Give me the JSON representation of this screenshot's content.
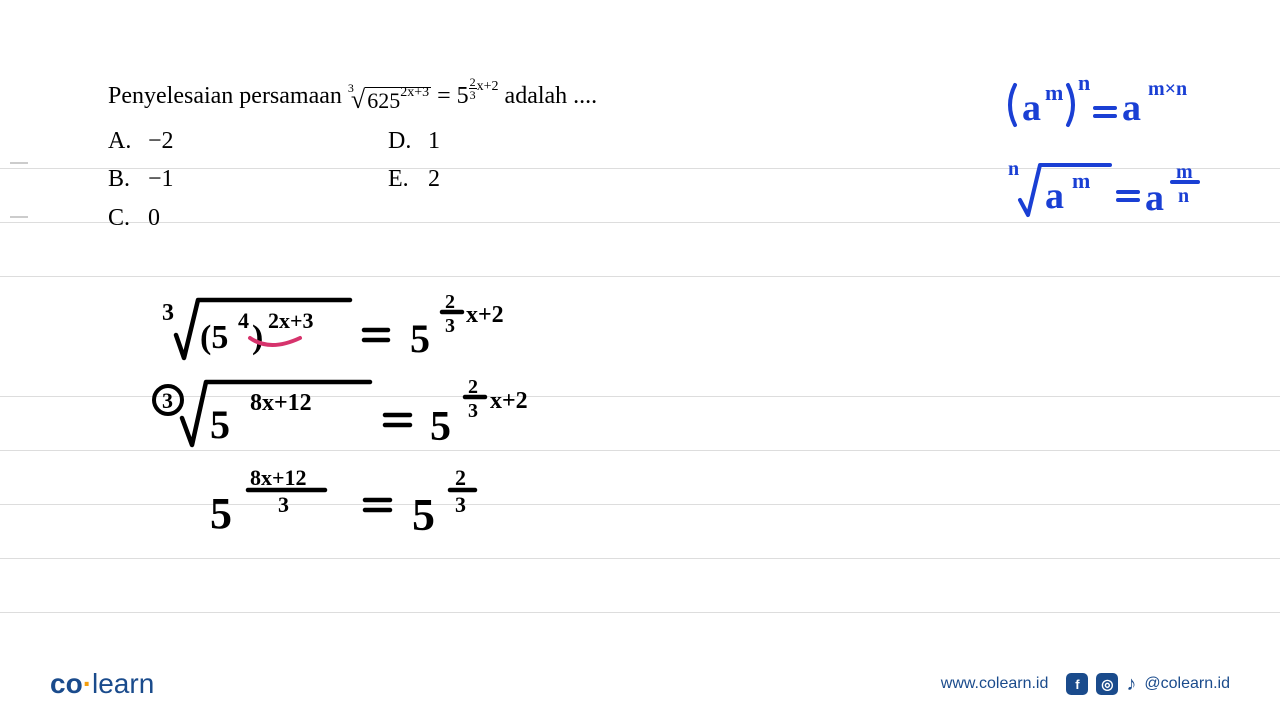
{
  "question": {
    "prefix": "Penyelesaian persamaan",
    "suffix": "adalah ....",
    "lhs": {
      "index": "3",
      "base": "625",
      "exp": "2x+3"
    },
    "rhs": {
      "base": "5",
      "frac_num": "2",
      "frac_den": "3",
      "exp_tail": "x+2"
    }
  },
  "options": {
    "A": "−2",
    "B": "−1",
    "C": "0",
    "D": "1",
    "E": "2"
  },
  "handwriting": {
    "rule1": "(aᵐ)ⁿ=aᵐˣⁿ",
    "rule2": "ⁿ√aᵐ=aᵐ/ⁿ",
    "work_line1_lhs_idx": "3",
    "work_line1_lhs_base": "(5⁴)",
    "work_line1_lhs_exp": "2x+3",
    "work_line1_rhs": "5",
    "work_line1_rhs_exp_frac_n": "2",
    "work_line1_rhs_exp_frac_d": "3",
    "work_line1_rhs_exp_tail": "x+2",
    "work_line2_lhs_idx": "3",
    "work_line2_lhs_base": "5",
    "work_line2_lhs_exp": "8x+12",
    "work_line2_rhs": "5",
    "work_line2_rhs_exp_frac_n": "2",
    "work_line2_rhs_exp_frac_d": "3",
    "work_line2_rhs_exp_tail": "x+2",
    "work_line3_lhs_base": "5",
    "work_line3_lhs_exp_num": "8x+12",
    "work_line3_lhs_exp_den": "3",
    "work_line3_rhs_base": "5",
    "work_line3_rhs_exp_num": "2",
    "work_line3_rhs_exp_den": "3"
  },
  "footer": {
    "logo_co": "co",
    "logo_dot": "·",
    "logo_learn": "learn",
    "url": "www.colearn.id",
    "handle": "@colearn.id"
  },
  "colors": {
    "text": "#000000",
    "ruled": "#dddddd",
    "handwriting_blue": "#1a3fd4",
    "handwriting_black": "#000000",
    "annotation_pink": "#d6336c",
    "brand_blue": "#1a4b8c",
    "brand_accent": "#f59e0b",
    "background": "#ffffff"
  },
  "ruled_line_y": [
    168,
    222,
    276,
    396,
    450,
    504,
    558,
    612
  ],
  "margin_mark_y": [
    162,
    216
  ]
}
